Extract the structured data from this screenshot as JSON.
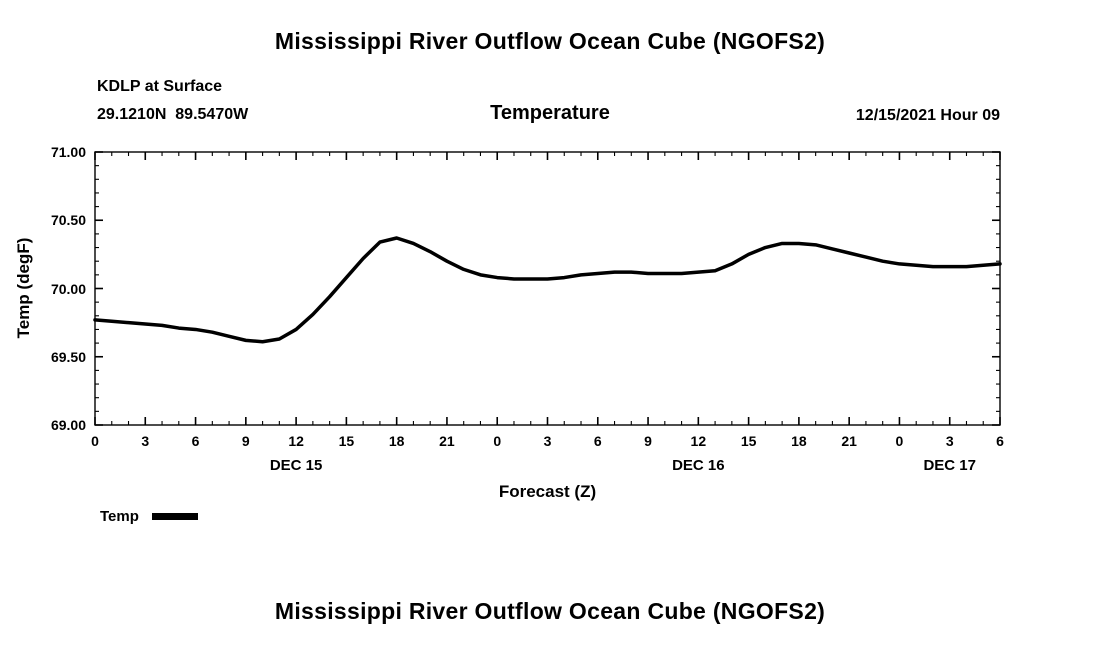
{
  "chart_data": {
    "type": "line",
    "title": "Mississippi River Outflow Ocean Cube (NGOFS2)",
    "subtitle_station": "KDLP at Surface",
    "subtitle_coords": "29.1210N  89.5470W",
    "panel_label": "Temperature",
    "init_label": "12/15/2021 Hour 09",
    "xlabel": "Forecast (Z)",
    "ylabel": "Temp (degF)",
    "xlim": [
      0,
      54
    ],
    "ylim": [
      69.0,
      71.0
    ],
    "grid": "ticks-only",
    "legend_position": "bottom-left",
    "line_color": "#000000",
    "line_width": 3.5,
    "xticks": [
      0,
      3,
      6,
      9,
      12,
      15,
      18,
      21,
      24,
      27,
      30,
      33,
      36,
      39,
      42,
      45,
      48,
      51,
      54
    ],
    "xtick_labels": [
      "0",
      "3",
      "6",
      "9",
      "12",
      "15",
      "18",
      "21",
      "0",
      "3",
      "6",
      "9",
      "12",
      "15",
      "18",
      "21",
      "0",
      "3",
      "6"
    ],
    "yticks": [
      69.0,
      69.5,
      70.0,
      70.5,
      71.0
    ],
    "ytick_labels": [
      "69.00",
      "69.50",
      "70.00",
      "70.50",
      "71.00"
    ],
    "date_labels": [
      {
        "label": "DEC 15",
        "hour": 12
      },
      {
        "label": "DEC 16",
        "hour": 36
      },
      {
        "label": "DEC 17",
        "hour": 51
      }
    ],
    "legend": [
      {
        "name": "Temp",
        "color": "#000000"
      }
    ],
    "series": [
      {
        "name": "Temp",
        "x": [
          0,
          1,
          2,
          3,
          4,
          5,
          6,
          7,
          8,
          9,
          10,
          11,
          12,
          13,
          14,
          15,
          16,
          17,
          18,
          19,
          20,
          21,
          22,
          23,
          24,
          25,
          26,
          27,
          28,
          29,
          30,
          31,
          32,
          33,
          34,
          35,
          36,
          37,
          38,
          39,
          40,
          41,
          42,
          43,
          44,
          45,
          46,
          47,
          48,
          49,
          50,
          51,
          52,
          53,
          54
        ],
        "y": [
          69.77,
          69.76,
          69.75,
          69.74,
          69.73,
          69.71,
          69.7,
          69.68,
          69.65,
          69.62,
          69.61,
          69.63,
          69.7,
          69.81,
          69.94,
          70.08,
          70.22,
          70.34,
          70.37,
          70.33,
          70.27,
          70.2,
          70.14,
          70.1,
          70.08,
          70.07,
          70.07,
          70.07,
          70.08,
          70.1,
          70.11,
          70.12,
          70.12,
          70.11,
          70.11,
          70.11,
          70.12,
          70.13,
          70.18,
          70.25,
          70.3,
          70.33,
          70.33,
          70.32,
          70.29,
          70.26,
          70.23,
          70.2,
          70.18,
          70.17,
          70.16,
          70.16,
          70.16,
          70.17,
          70.18
        ]
      }
    ],
    "footer_title": "Mississippi River Outflow Ocean Cube (NGOFS2)"
  }
}
